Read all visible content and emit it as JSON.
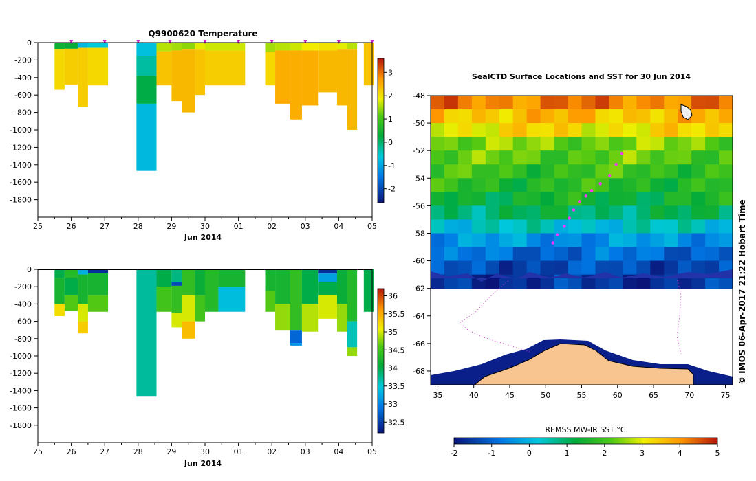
{
  "chart_data": [
    {
      "type": "heatmap",
      "title": "Q9900620  Temperature",
      "xlabel": "Jun 2014",
      "ylabel": "",
      "x_ticks": [
        "25",
        "26",
        "27",
        "28",
        "29",
        "30",
        "01",
        "02",
        "03",
        "04",
        "05"
      ],
      "y_ticks": [
        0,
        -200,
        -400,
        -600,
        -800,
        -1000,
        -1200,
        -1400,
        -1600,
        -1800
      ],
      "ylim": [
        -2000,
        0
      ],
      "colorbar": {
        "ticks": [
          3,
          2,
          1,
          0,
          -1,
          -2
        ],
        "range": [
          -2.6,
          3.6
        ]
      },
      "profile_markers_day": [
        26.0,
        27.0,
        28.0,
        28.95,
        30.0,
        31.0,
        32.0,
        33.0,
        34.0,
        35.0
      ],
      "profiles": [
        {
          "start": 25.5,
          "end": 25.8,
          "depth": -540,
          "layers": [
            {
              "to": -80,
              "value": 0.4
            },
            {
              "to": -540,
              "value": 2.1
            }
          ]
        },
        {
          "start": 25.8,
          "end": 26.2,
          "depth": -480,
          "layers": [
            {
              "to": -70,
              "value": 0.3
            },
            {
              "to": -480,
              "value": 2.2
            }
          ]
        },
        {
          "start": 26.2,
          "end": 26.5,
          "depth": -740,
          "layers": [
            {
              "to": -60,
              "value": -0.8
            },
            {
              "to": -740,
              "value": 2.2
            }
          ]
        },
        {
          "start": 26.5,
          "end": 27.1,
          "depth": -490,
          "layers": [
            {
              "to": -60,
              "value": -0.6
            },
            {
              "to": -490,
              "value": 2.1
            }
          ]
        },
        {
          "start": 27.95,
          "end": 28.55,
          "depth": -1470,
          "layers": [
            {
              "to": -150,
              "value": -0.7
            },
            {
              "to": -380,
              "value": -0.3
            },
            {
              "to": -700,
              "value": 0.2
            },
            {
              "to": -1470,
              "value": -0.8
            }
          ]
        },
        {
          "start": 28.55,
          "end": 29.0,
          "depth": -490,
          "layers": [
            {
              "to": -100,
              "value": 1.6
            },
            {
              "to": -490,
              "value": 2.3
            }
          ]
        },
        {
          "start": 29.0,
          "end": 29.3,
          "depth": -670,
          "layers": [
            {
              "to": -90,
              "value": 1.5
            },
            {
              "to": -670,
              "value": 2.4
            }
          ]
        },
        {
          "start": 29.3,
          "end": 29.7,
          "depth": -800,
          "layers": [
            {
              "to": -80,
              "value": 1.4
            },
            {
              "to": -800,
              "value": 2.4
            }
          ]
        },
        {
          "start": 29.7,
          "end": 30.0,
          "depth": -600,
          "layers": [
            {
              "to": -80,
              "value": 1.8
            },
            {
              "to": -600,
              "value": 2.3
            }
          ]
        },
        {
          "start": 30.0,
          "end": 31.2,
          "depth": -490,
          "layers": [
            {
              "to": -90,
              "value": 1.7
            },
            {
              "to": -490,
              "value": 2.2
            }
          ]
        },
        {
          "start": 31.8,
          "end": 32.1,
          "depth": -490,
          "layers": [
            {
              "to": -110,
              "value": 1.5
            },
            {
              "to": -490,
              "value": 2.1
            }
          ]
        },
        {
          "start": 32.1,
          "end": 32.55,
          "depth": -700,
          "layers": [
            {
              "to": -90,
              "value": 1.6
            },
            {
              "to": -700,
              "value": 2.5
            }
          ]
        },
        {
          "start": 32.55,
          "end": 32.9,
          "depth": -880,
          "layers": [
            {
              "to": -90,
              "value": 1.7
            },
            {
              "to": -880,
              "value": 2.5
            }
          ]
        },
        {
          "start": 32.9,
          "end": 33.4,
          "depth": -720,
          "layers": [
            {
              "to": -90,
              "value": 1.9
            },
            {
              "to": -720,
              "value": 2.5
            }
          ]
        },
        {
          "start": 33.4,
          "end": 33.95,
          "depth": -570,
          "layers": [
            {
              "to": -90,
              "value": 2.0
            },
            {
              "to": -570,
              "value": 2.4
            }
          ]
        },
        {
          "start": 33.95,
          "end": 34.25,
          "depth": -720,
          "layers": [
            {
              "to": -80,
              "value": 1.8
            },
            {
              "to": -720,
              "value": 2.4
            }
          ]
        },
        {
          "start": 34.25,
          "end": 34.55,
          "depth": -1000,
          "layers": [
            {
              "to": -80,
              "value": 1.6
            },
            {
              "to": -1000,
              "value": 2.4
            }
          ]
        },
        {
          "start": 34.75,
          "end": 35.05,
          "depth": -490,
          "layers": [
            {
              "to": -490,
              "value": 2.3
            }
          ]
        }
      ]
    },
    {
      "type": "heatmap",
      "title": "",
      "xlabel": "Jun 2014",
      "ylabel": "",
      "x_ticks": [
        "25",
        "26",
        "27",
        "28",
        "29",
        "30",
        "01",
        "02",
        "03",
        "04",
        "05"
      ],
      "y_ticks": [
        0,
        -200,
        -400,
        -600,
        -800,
        -1000,
        -1200,
        -1400,
        -1600,
        -1800
      ],
      "ylim": [
        -2000,
        0
      ],
      "colorbar": {
        "ticks": [
          36,
          35.5,
          35,
          34.5,
          34,
          33.5,
          33,
          32.5
        ],
        "range": [
          32.2,
          36.2
        ]
      },
      "profiles": [
        {
          "start": 25.5,
          "end": 25.8,
          "depth": -540,
          "layers": [
            {
              "to": -100,
              "value": 34.0
            },
            {
              "to": -400,
              "value": 34.2
            },
            {
              "to": -540,
              "value": 35.2
            }
          ]
        },
        {
          "start": 25.8,
          "end": 26.2,
          "depth": -480,
          "layers": [
            {
              "to": -100,
              "value": 34.3
            },
            {
              "to": -300,
              "value": 34.0
            },
            {
              "to": -480,
              "value": 34.6
            }
          ]
        },
        {
          "start": 26.2,
          "end": 26.5,
          "depth": -740,
          "layers": [
            {
              "to": -60,
              "value": 33.3
            },
            {
              "to": -400,
              "value": 34.2
            },
            {
              "to": -600,
              "value": 35.0
            },
            {
              "to": -740,
              "value": 35.3
            }
          ]
        },
        {
          "start": 26.5,
          "end": 27.1,
          "depth": -490,
          "layers": [
            {
              "to": -40,
              "value": 32.4
            },
            {
              "to": -300,
              "value": 34.2
            },
            {
              "to": -490,
              "value": 34.6
            }
          ]
        },
        {
          "start": 27.95,
          "end": 28.55,
          "depth": -1470,
          "layers": [
            {
              "to": -1470,
              "value": 33.7
            }
          ]
        },
        {
          "start": 28.55,
          "end": 29.0,
          "depth": -490,
          "layers": [
            {
              "to": -200,
              "value": 34.0
            },
            {
              "to": -490,
              "value": 34.5
            }
          ]
        },
        {
          "start": 29.0,
          "end": 29.3,
          "depth": -670,
          "layers": [
            {
              "to": -150,
              "value": 33.8
            },
            {
              "to": -190,
              "value": 32.6
            },
            {
              "to": -500,
              "value": 34.4
            },
            {
              "to": -670,
              "value": 35.0
            }
          ]
        },
        {
          "start": 29.3,
          "end": 29.7,
          "depth": -800,
          "layers": [
            {
              "to": -300,
              "value": 34.4
            },
            {
              "to": -600,
              "value": 35.0
            },
            {
              "to": -800,
              "value": 35.4
            }
          ]
        },
        {
          "start": 29.7,
          "end": 30.0,
          "depth": -600,
          "layers": [
            {
              "to": -300,
              "value": 34.1
            },
            {
              "to": -600,
              "value": 34.5
            }
          ]
        },
        {
          "start": 30.0,
          "end": 30.4,
          "depth": -490,
          "layers": [
            {
              "to": -490,
              "value": 34.3
            }
          ]
        },
        {
          "start": 30.4,
          "end": 31.2,
          "depth": -490,
          "layers": [
            {
              "to": -200,
              "value": 34.2
            },
            {
              "to": -490,
              "value": 33.4
            }
          ]
        },
        {
          "start": 31.8,
          "end": 32.1,
          "depth": -490,
          "layers": [
            {
              "to": -250,
              "value": 34.2
            },
            {
              "to": -490,
              "value": 34.6
            }
          ]
        },
        {
          "start": 32.1,
          "end": 32.55,
          "depth": -700,
          "layers": [
            {
              "to": -400,
              "value": 34.2
            },
            {
              "to": -700,
              "value": 34.8
            }
          ]
        },
        {
          "start": 32.55,
          "end": 32.9,
          "depth": -880,
          "layers": [
            {
              "to": -700,
              "value": 34.4
            },
            {
              "to": -850,
              "value": 32.8
            },
            {
              "to": -880,
              "value": 33.1
            }
          ]
        },
        {
          "start": 32.9,
          "end": 33.4,
          "depth": -720,
          "layers": [
            {
              "to": -400,
              "value": 34.0
            },
            {
              "to": -720,
              "value": 34.9
            }
          ]
        },
        {
          "start": 33.4,
          "end": 33.95,
          "depth": -570,
          "layers": [
            {
              "to": -50,
              "value": 32.4
            },
            {
              "to": -150,
              "value": 33.2
            },
            {
              "to": -300,
              "value": 34.0
            },
            {
              "to": -570,
              "value": 35.0
            }
          ]
        },
        {
          "start": 33.95,
          "end": 34.25,
          "depth": -720,
          "layers": [
            {
              "to": -400,
              "value": 34.1
            },
            {
              "to": -720,
              "value": 34.8
            }
          ]
        },
        {
          "start": 34.25,
          "end": 34.55,
          "depth": -1000,
          "layers": [
            {
              "to": -600,
              "value": 34.3
            },
            {
              "to": -900,
              "value": 33.6
            },
            {
              "to": -1000,
              "value": 34.8
            }
          ]
        },
        {
          "start": 34.75,
          "end": 35.05,
          "depth": -490,
          "layers": [
            {
              "to": -490,
              "value": 34.0
            }
          ]
        }
      ]
    },
    {
      "type": "heatmap",
      "title": "SealCTD Surface Locations and SST for 30 Jun 2014",
      "xlabel": "",
      "ylabel": "",
      "x_ticks": [
        "35",
        "40",
        "45",
        "50",
        "55",
        "60",
        "65",
        "70",
        "75"
      ],
      "y_ticks": [
        "-48",
        "-50",
        "-52",
        "-54",
        "-56",
        "-58",
        "-60",
        "-62",
        "-64",
        "-66",
        "-68"
      ],
      "xlim": [
        34,
        76
      ],
      "ylim": [
        -69,
        -48
      ],
      "colorbar_label": "REMSS MW-IR SST °C",
      "colorbar_ticks": [
        "-2",
        "-1",
        "0",
        "1",
        "2",
        "3",
        "4",
        "5"
      ],
      "credit": "© IMOS 06-Apr-2017 21:22 Hobart Time",
      "sst_by_latitude": [
        {
          "lat": -48,
          "sst": 4.2
        },
        {
          "lat": -49,
          "sst": 3.6
        },
        {
          "lat": -50,
          "sst": 3.2
        },
        {
          "lat": -51,
          "sst": 2.4
        },
        {
          "lat": -52,
          "sst": 2.2
        },
        {
          "lat": -53,
          "sst": 1.9
        },
        {
          "lat": -54,
          "sst": 1.7
        },
        {
          "lat": -55,
          "sst": 1.4
        },
        {
          "lat": -56,
          "sst": 1.0
        },
        {
          "lat": -57,
          "sst": 0.3
        },
        {
          "lat": -58,
          "sst": -0.4
        },
        {
          "lat": -59,
          "sst": -0.9
        },
        {
          "lat": -60,
          "sst": -1.3
        },
        {
          "lat": -61,
          "sst": -1.6
        }
      ],
      "seal_locations": [
        {
          "lon": 60.6,
          "lat": -52.2
        },
        {
          "lon": 59.8,
          "lat": -53.0
        },
        {
          "lon": 58.9,
          "lat": -53.8
        },
        {
          "lon": 57.6,
          "lat": -54.4
        },
        {
          "lon": 56.4,
          "lat": -54.9
        },
        {
          "lon": 55.6,
          "lat": -55.3
        },
        {
          "lon": 54.7,
          "lat": -55.7
        },
        {
          "lon": 53.9,
          "lat": -56.3
        },
        {
          "lon": 53.3,
          "lat": -56.9
        },
        {
          "lon": 52.6,
          "lat": -57.5
        },
        {
          "lon": 51.6,
          "lat": -58.1
        },
        {
          "lon": 51.0,
          "lat": -58.7
        }
      ]
    }
  ]
}
